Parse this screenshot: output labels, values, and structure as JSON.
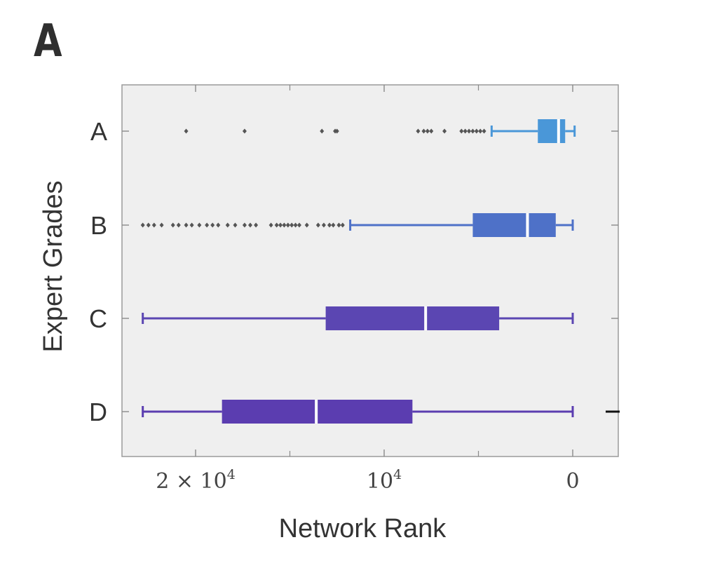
{
  "panel_label": "A",
  "chart_data": {
    "type": "box",
    "orientation": "horizontal",
    "title": "",
    "xlabel": "Network Rank",
    "ylabel": "Expert Grades",
    "x_axis_reversed": true,
    "xlim": [
      23000,
      -2400
    ],
    "xticks": [
      {
        "value": 20000,
        "label_main": "2 × 10",
        "label_sup": "4"
      },
      {
        "value": 10000,
        "label_main": "10",
        "label_sup": "4"
      },
      {
        "value": 0,
        "label_main": "0",
        "label_sup": ""
      }
    ],
    "minor_xticks": [
      15000,
      5000
    ],
    "categories": [
      "A",
      "B",
      "C",
      "D"
    ],
    "series": [
      {
        "name": "A",
        "color": "#4a97d8",
        "whisker_low": -100,
        "q1": 400,
        "median": 750,
        "q3": 1850,
        "whisker_high": 4300,
        "outliers": [
          20500,
          17400,
          13300,
          12600,
          12500,
          8200,
          7900,
          7700,
          7500,
          6800,
          5900,
          5700,
          5500,
          5300,
          5100,
          4900,
          4700
        ]
      },
      {
        "name": "B",
        "color": "#4e71c8",
        "whisker_low": 0,
        "q1": 900,
        "median": 2400,
        "q3": 5300,
        "whisker_high": 11800,
        "outliers": [
          22800,
          22500,
          22200,
          21800,
          21200,
          20900,
          20500,
          20200,
          19800,
          19400,
          19100,
          18800,
          18300,
          17900,
          17400,
          17100,
          16800,
          16000,
          15700,
          15500,
          15300,
          15100,
          14900,
          14700,
          14500,
          14100,
          13500,
          13200,
          12900,
          12700,
          12400,
          12200
        ]
      },
      {
        "name": "C",
        "color": "#5b46b2",
        "whisker_low": 0,
        "q1": 3900,
        "median": 7800,
        "q3": 13100,
        "whisker_high": 22800
      },
      {
        "name": "D",
        "color": "#5b3db0",
        "whisker_low": 0,
        "q1": 8500,
        "median": 13600,
        "q3": 18600,
        "whisker_high": 22800
      }
    ],
    "grid": false,
    "legend": "none"
  }
}
